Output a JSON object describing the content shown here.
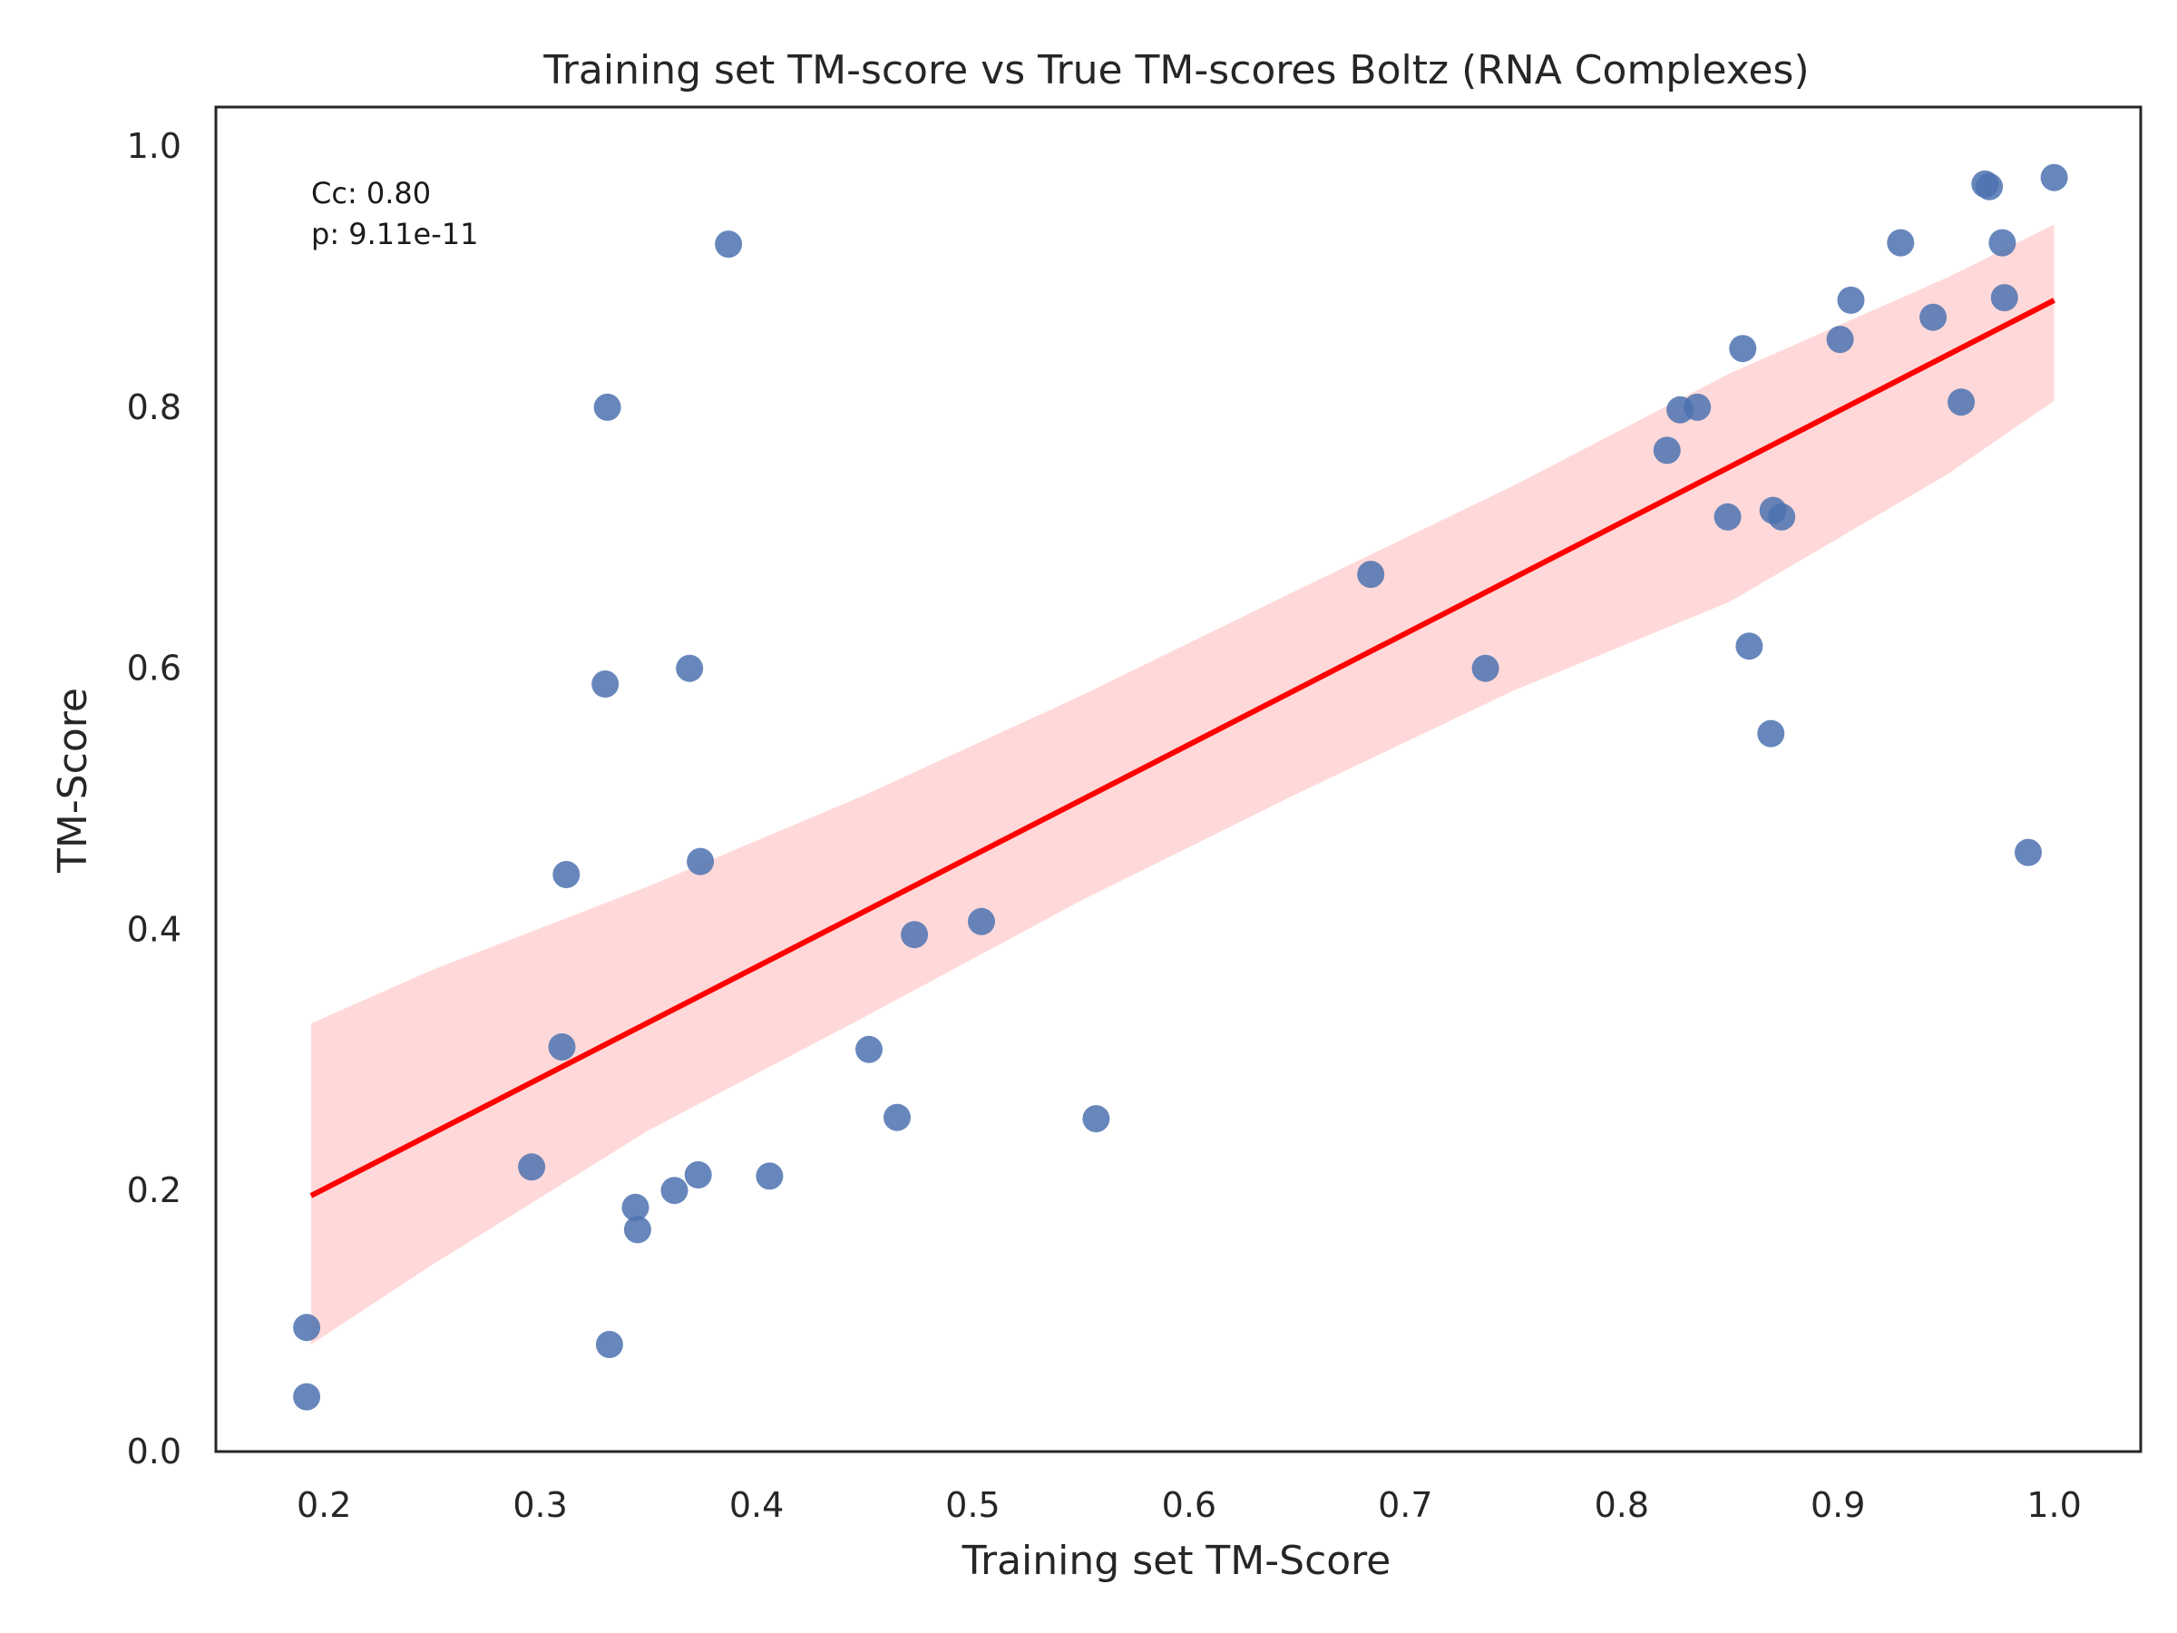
{
  "chart_data": {
    "type": "scatter",
    "title": "Training set TM-score vs True TM-scores Boltz (RNA Complexes)",
    "xlabel": "Training set TM-Score",
    "ylabel": "TM-Score",
    "xlim": [
      0.15,
      1.04
    ],
    "ylim": [
      0.0,
      1.03
    ],
    "xticks": [
      0.2,
      0.3,
      0.4,
      0.5,
      0.6,
      0.7,
      0.8,
      0.9,
      1.0
    ],
    "xtick_labels": [
      "0.2",
      "0.3",
      "0.4",
      "0.5",
      "0.6",
      "0.7",
      "0.8",
      "0.9",
      "1.0"
    ],
    "yticks": [
      0.0,
      0.2,
      0.4,
      0.6,
      0.8,
      1.0
    ],
    "ytick_labels": [
      "0.0",
      "0.2",
      "0.4",
      "0.6",
      "0.8",
      "1.0"
    ],
    "grid": false,
    "annotations": [
      "Cc: 0.80",
      "p: 9.11e-11"
    ],
    "point_color": "#4c72b0",
    "points": [
      {
        "x": 0.192,
        "y": 0.095
      },
      {
        "x": 0.192,
        "y": 0.042
      },
      {
        "x": 0.296,
        "y": 0.218
      },
      {
        "x": 0.31,
        "y": 0.31
      },
      {
        "x": 0.312,
        "y": 0.442
      },
      {
        "x": 0.33,
        "y": 0.588
      },
      {
        "x": 0.331,
        "y": 0.8
      },
      {
        "x": 0.332,
        "y": 0.082
      },
      {
        "x": 0.344,
        "y": 0.187
      },
      {
        "x": 0.345,
        "y": 0.17
      },
      {
        "x": 0.362,
        "y": 0.2
      },
      {
        "x": 0.369,
        "y": 0.6
      },
      {
        "x": 0.373,
        "y": 0.212
      },
      {
        "x": 0.374,
        "y": 0.452
      },
      {
        "x": 0.387,
        "y": 0.925
      },
      {
        "x": 0.406,
        "y": 0.211
      },
      {
        "x": 0.452,
        "y": 0.308
      },
      {
        "x": 0.465,
        "y": 0.256
      },
      {
        "x": 0.473,
        "y": 0.396
      },
      {
        "x": 0.504,
        "y": 0.406
      },
      {
        "x": 0.557,
        "y": 0.255
      },
      {
        "x": 0.684,
        "y": 0.672
      },
      {
        "x": 0.737,
        "y": 0.6
      },
      {
        "x": 0.821,
        "y": 0.767
      },
      {
        "x": 0.827,
        "y": 0.798
      },
      {
        "x": 0.835,
        "y": 0.8
      },
      {
        "x": 0.849,
        "y": 0.716
      },
      {
        "x": 0.856,
        "y": 0.845
      },
      {
        "x": 0.859,
        "y": 0.617
      },
      {
        "x": 0.869,
        "y": 0.55
      },
      {
        "x": 0.87,
        "y": 0.721
      },
      {
        "x": 0.874,
        "y": 0.716
      },
      {
        "x": 0.901,
        "y": 0.852
      },
      {
        "x": 0.906,
        "y": 0.882
      },
      {
        "x": 0.929,
        "y": 0.926
      },
      {
        "x": 0.944,
        "y": 0.869
      },
      {
        "x": 0.957,
        "y": 0.804
      },
      {
        "x": 0.968,
        "y": 0.971
      },
      {
        "x": 0.97,
        "y": 0.969
      },
      {
        "x": 0.976,
        "y": 0.926
      },
      {
        "x": 0.977,
        "y": 0.884
      },
      {
        "x": 0.988,
        "y": 0.459
      },
      {
        "x": 1.0,
        "y": 0.976
      }
    ],
    "regression": {
      "color": "#ff0000",
      "x": [
        0.194,
        1.0
      ],
      "y": [
        0.196,
        0.882
      ]
    },
    "confidence_band": {
      "color": "#ffcccc",
      "x": [
        0.194,
        0.25,
        0.35,
        0.45,
        0.55,
        0.65,
        0.75,
        0.85,
        0.95,
        1.0
      ],
      "upper": [
        0.328,
        0.369,
        0.433,
        0.503,
        0.579,
        0.66,
        0.74,
        0.826,
        0.899,
        0.94
      ],
      "lower": [
        0.082,
        0.143,
        0.246,
        0.333,
        0.422,
        0.504,
        0.583,
        0.651,
        0.748,
        0.805
      ]
    }
  }
}
